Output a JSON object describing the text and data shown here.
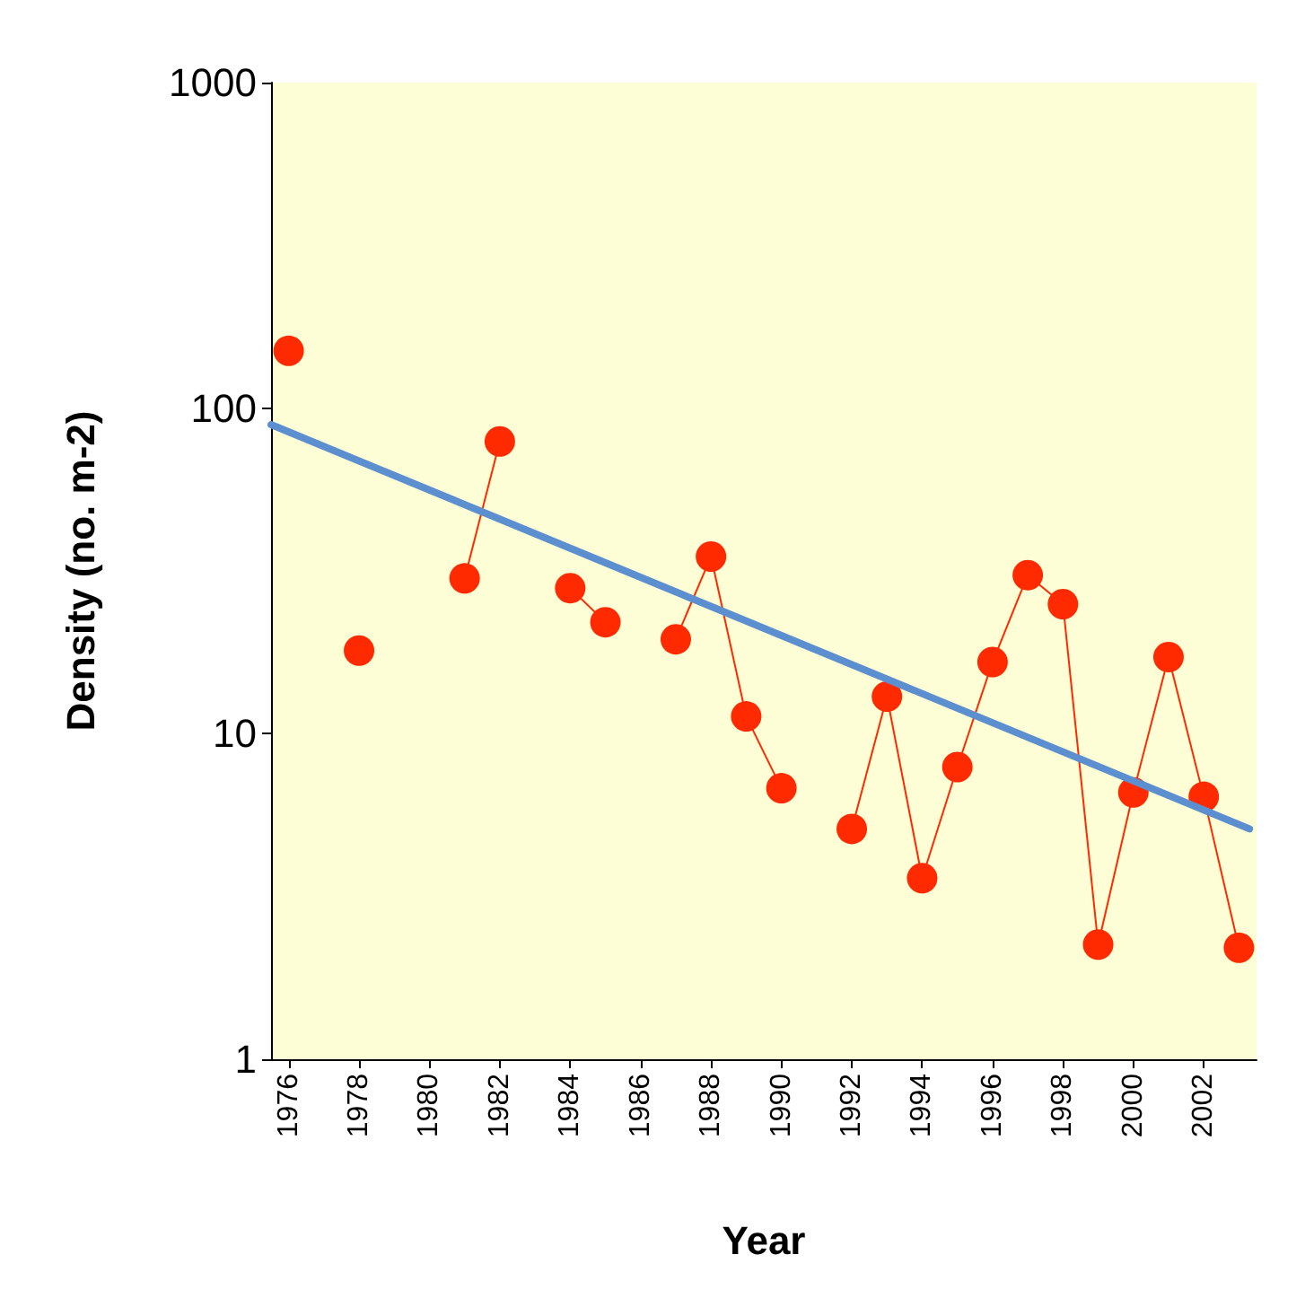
{
  "chart_data": {
    "type": "line",
    "xlabel": "Year",
    "ylabel": "Density (no. m-2)",
    "log": "y",
    "grid": false,
    "marker": "circle",
    "line_style": "solid",
    "xlim": [
      1975.5,
      2003.5
    ],
    "xticks": [
      1976,
      1978,
      1980,
      1982,
      1984,
      1986,
      1988,
      1990,
      1992,
      1994,
      1996,
      1998,
      2000,
      2002
    ],
    "ylim": [
      1,
      1000
    ],
    "yticks": [
      1,
      10,
      100,
      1000
    ],
    "series": [
      {
        "color": "#ff2a00",
        "x": [
          1976,
          1977,
          1978,
          1979,
          1980,
          1981,
          1982,
          1983,
          1984,
          1985,
          1986,
          1987,
          1988,
          1989,
          1990,
          1991,
          1992,
          1993,
          1994,
          1995,
          1996,
          1997,
          1998,
          1999,
          2000,
          2001,
          2002,
          2003
        ],
        "values": [
          150,
          null,
          18,
          null,
          null,
          30,
          79,
          null,
          28,
          22,
          null,
          19.5,
          35,
          11.3,
          6.8,
          null,
          5.1,
          13,
          3.6,
          7.9,
          16.6,
          30.7,
          25,
          2.25,
          6.6,
          17.2,
          6.4,
          2.2
        ]
      },
      {
        "type": "line",
        "color": "#5b8fcf",
        "marker": "none",
        "x": [
          1975.5,
          2003.3
        ],
        "values": [
          89,
          5.1
        ]
      }
    ]
  }
}
